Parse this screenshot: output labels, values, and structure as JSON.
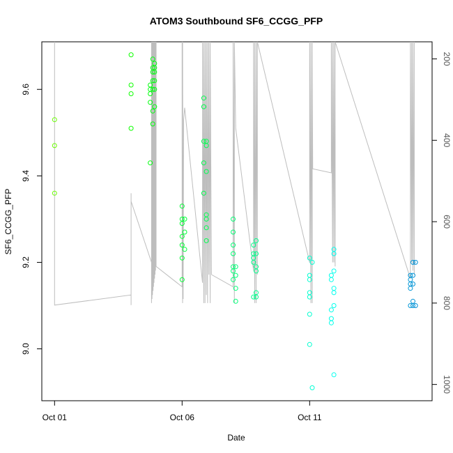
{
  "chart_data": {
    "type": "scatter",
    "title": "ATOM3 Southbound SF6_CCGG_PFP",
    "xlabel": "Date",
    "ylabel": "SF6_CCGG_PFP",
    "x_unit": "days since Oct 01",
    "xlim": [
      -0.5,
      14.8
    ],
    "ylim": [
      8.88,
      9.71
    ],
    "x_ticks": [
      {
        "value": 0,
        "label": "Oct 01"
      },
      {
        "value": 5,
        "label": "Oct 06"
      },
      {
        "value": 10,
        "label": "Oct 11"
      }
    ],
    "y_ticks": [
      9.0,
      9.2,
      9.4,
      9.6
    ],
    "y2_ticks": [
      200,
      400,
      600,
      800,
      1000
    ],
    "y2lim": [
      1040,
      158
    ],
    "grid": false,
    "points": [
      {
        "x": 0.0,
        "y": 9.53
      },
      {
        "x": 0.0,
        "y": 9.47
      },
      {
        "x": 0.0,
        "y": 9.36
      },
      {
        "x": 3.0,
        "y": 9.68
      },
      {
        "x": 3.0,
        "y": 9.61
      },
      {
        "x": 3.0,
        "y": 9.59
      },
      {
        "x": 3.0,
        "y": 9.51
      },
      {
        "x": 3.75,
        "y": 9.61
      },
      {
        "x": 3.75,
        "y": 9.6
      },
      {
        "x": 3.75,
        "y": 9.59
      },
      {
        "x": 3.75,
        "y": 9.57
      },
      {
        "x": 3.75,
        "y": 9.43
      },
      {
        "x": 3.85,
        "y": 9.67
      },
      {
        "x": 3.85,
        "y": 9.65
      },
      {
        "x": 3.85,
        "y": 9.64
      },
      {
        "x": 3.85,
        "y": 9.62
      },
      {
        "x": 3.85,
        "y": 9.6
      },
      {
        "x": 3.85,
        "y": 9.55
      },
      {
        "x": 3.85,
        "y": 9.52
      },
      {
        "x": 3.92,
        "y": 9.66
      },
      {
        "x": 3.92,
        "y": 9.65
      },
      {
        "x": 3.92,
        "y": 9.64
      },
      {
        "x": 3.92,
        "y": 9.62
      },
      {
        "x": 3.92,
        "y": 9.6
      },
      {
        "x": 3.92,
        "y": 9.56
      },
      {
        "x": 5.0,
        "y": 9.33
      },
      {
        "x": 5.0,
        "y": 9.3
      },
      {
        "x": 5.0,
        "y": 9.29
      },
      {
        "x": 5.0,
        "y": 9.26
      },
      {
        "x": 5.0,
        "y": 9.24
      },
      {
        "x": 5.0,
        "y": 9.21
      },
      {
        "x": 5.0,
        "y": 9.16
      },
      {
        "x": 5.1,
        "y": 9.3
      },
      {
        "x": 5.1,
        "y": 9.27
      },
      {
        "x": 5.1,
        "y": 9.23
      },
      {
        "x": 5.85,
        "y": 9.58
      },
      {
        "x": 5.85,
        "y": 9.56
      },
      {
        "x": 5.85,
        "y": 9.48
      },
      {
        "x": 5.85,
        "y": 9.43
      },
      {
        "x": 5.85,
        "y": 9.36
      },
      {
        "x": 5.95,
        "y": 9.48
      },
      {
        "x": 5.95,
        "y": 9.47
      },
      {
        "x": 5.95,
        "y": 9.41
      },
      {
        "x": 5.95,
        "y": 9.31
      },
      {
        "x": 5.95,
        "y": 9.3
      },
      {
        "x": 5.95,
        "y": 9.28
      },
      {
        "x": 5.95,
        "y": 9.25
      },
      {
        "x": 7.0,
        "y": 9.3
      },
      {
        "x": 7.0,
        "y": 9.27
      },
      {
        "x": 7.0,
        "y": 9.24
      },
      {
        "x": 7.0,
        "y": 9.22
      },
      {
        "x": 7.0,
        "y": 9.19
      },
      {
        "x": 7.0,
        "y": 9.18
      },
      {
        "x": 7.0,
        "y": 9.16
      },
      {
        "x": 7.1,
        "y": 9.19
      },
      {
        "x": 7.1,
        "y": 9.17
      },
      {
        "x": 7.1,
        "y": 9.14
      },
      {
        "x": 7.1,
        "y": 9.11
      },
      {
        "x": 7.8,
        "y": 9.24
      },
      {
        "x": 7.8,
        "y": 9.22
      },
      {
        "x": 7.8,
        "y": 9.21
      },
      {
        "x": 7.8,
        "y": 9.2
      },
      {
        "x": 7.8,
        "y": 9.12
      },
      {
        "x": 7.9,
        "y": 9.25
      },
      {
        "x": 7.9,
        "y": 9.22
      },
      {
        "x": 7.9,
        "y": 9.19
      },
      {
        "x": 7.9,
        "y": 9.18
      },
      {
        "x": 7.9,
        "y": 9.13
      },
      {
        "x": 7.9,
        "y": 9.12
      },
      {
        "x": 10.0,
        "y": 9.21
      },
      {
        "x": 10.0,
        "y": 9.17
      },
      {
        "x": 10.0,
        "y": 9.16
      },
      {
        "x": 10.0,
        "y": 9.13
      },
      {
        "x": 10.0,
        "y": 9.12
      },
      {
        "x": 10.0,
        "y": 9.08
      },
      {
        "x": 10.0,
        "y": 9.01
      },
      {
        "x": 10.1,
        "y": 9.2
      },
      {
        "x": 10.1,
        "y": 8.91
      },
      {
        "x": 10.85,
        "y": 9.17
      },
      {
        "x": 10.85,
        "y": 9.16
      },
      {
        "x": 10.85,
        "y": 9.09
      },
      {
        "x": 10.85,
        "y": 9.07
      },
      {
        "x": 10.85,
        "y": 9.06
      },
      {
        "x": 10.95,
        "y": 9.23
      },
      {
        "x": 10.95,
        "y": 9.22
      },
      {
        "x": 10.95,
        "y": 9.18
      },
      {
        "x": 10.95,
        "y": 9.14
      },
      {
        "x": 10.95,
        "y": 9.13
      },
      {
        "x": 10.95,
        "y": 9.1
      },
      {
        "x": 10.95,
        "y": 8.94
      },
      {
        "x": 13.95,
        "y": 9.17
      },
      {
        "x": 13.95,
        "y": 9.16
      },
      {
        "x": 13.95,
        "y": 9.15
      },
      {
        "x": 13.95,
        "y": 9.14
      },
      {
        "x": 13.95,
        "y": 9.1
      },
      {
        "x": 14.05,
        "y": 9.2
      },
      {
        "x": 14.05,
        "y": 9.17
      },
      {
        "x": 14.05,
        "y": 9.15
      },
      {
        "x": 14.05,
        "y": 9.11
      },
      {
        "x": 14.05,
        "y": 9.1
      },
      {
        "x": 14.15,
        "y": 9.2
      },
      {
        "x": 14.15,
        "y": 9.1
      }
    ],
    "altitude_track": [
      [
        0.0,
        800
      ],
      [
        0.0,
        150
      ],
      [
        0.0,
        805
      ],
      [
        3.0,
        780
      ],
      [
        3.0,
        530
      ],
      [
        3.0,
        805
      ],
      [
        3.0,
        550
      ],
      [
        3.8,
        700
      ],
      [
        3.8,
        150
      ],
      [
        3.8,
        800
      ],
      [
        3.82,
        150
      ],
      [
        3.82,
        790
      ],
      [
        3.84,
        150
      ],
      [
        3.84,
        780
      ],
      [
        3.86,
        150
      ],
      [
        3.86,
        770
      ],
      [
        3.88,
        150
      ],
      [
        3.88,
        760
      ],
      [
        3.9,
        150
      ],
      [
        3.9,
        750
      ],
      [
        3.92,
        150
      ],
      [
        3.92,
        740
      ],
      [
        3.94,
        150
      ],
      [
        3.94,
        730
      ],
      [
        3.96,
        150
      ],
      [
        3.96,
        720
      ],
      [
        3.98,
        150
      ],
      [
        3.98,
        710
      ],
      [
        5.0,
        760
      ],
      [
        5.0,
        150
      ],
      [
        5.02,
        800
      ],
      [
        5.02,
        150
      ],
      [
        5.04,
        790
      ],
      [
        5.04,
        780
      ],
      [
        5.06,
        350
      ],
      [
        5.1,
        320
      ],
      [
        5.8,
        750
      ],
      [
        5.8,
        150
      ],
      [
        5.85,
        800
      ],
      [
        5.85,
        150
      ],
      [
        5.9,
        800
      ],
      [
        5.9,
        150
      ],
      [
        5.95,
        780
      ],
      [
        5.95,
        150
      ],
      [
        6.0,
        800
      ],
      [
        6.0,
        150
      ],
      [
        6.05,
        730
      ],
      [
        6.05,
        150
      ],
      [
        6.1,
        800
      ],
      [
        6.1,
        150
      ],
      [
        6.15,
        730
      ],
      [
        7.0,
        760
      ],
      [
        7.0,
        150
      ],
      [
        7.05,
        800
      ],
      [
        7.05,
        150
      ],
      [
        7.1,
        370
      ],
      [
        7.8,
        720
      ],
      [
        7.8,
        150
      ],
      [
        7.85,
        800
      ],
      [
        7.85,
        150
      ],
      [
        7.9,
        800
      ],
      [
        7.9,
        150
      ],
      [
        7.95,
        730
      ],
      [
        7.95,
        150
      ],
      [
        10.0,
        700
      ],
      [
        10.0,
        150
      ],
      [
        10.05,
        800
      ],
      [
        10.05,
        150
      ],
      [
        10.1,
        800
      ],
      [
        10.1,
        150
      ],
      [
        10.12,
        470
      ],
      [
        10.85,
        480
      ],
      [
        10.85,
        150
      ],
      [
        10.9,
        700
      ],
      [
        10.9,
        150
      ],
      [
        10.95,
        700
      ],
      [
        10.95,
        150
      ],
      [
        11.0,
        710
      ],
      [
        11.0,
        150
      ],
      [
        13.95,
        740
      ],
      [
        13.95,
        150
      ],
      [
        14.0,
        700
      ],
      [
        14.0,
        150
      ],
      [
        14.05,
        720
      ],
      [
        14.05,
        150
      ],
      [
        14.1,
        730
      ],
      [
        14.1,
        150
      ]
    ]
  }
}
